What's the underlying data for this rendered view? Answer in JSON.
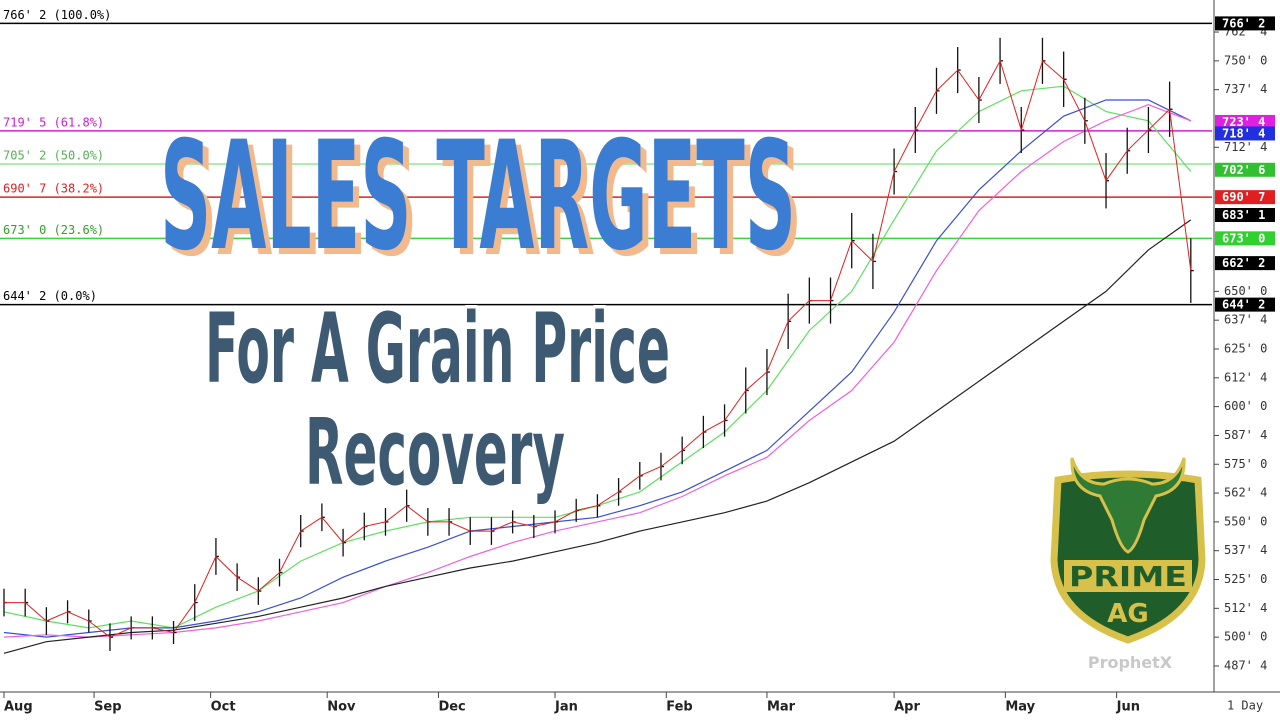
{
  "chart_data": {
    "type": "ohlc",
    "x": [
      0,
      4,
      8,
      12,
      16,
      20,
      24,
      28,
      32,
      36,
      40,
      44,
      48,
      52,
      56,
      60,
      64,
      68,
      72,
      76,
      80,
      84,
      88,
      92,
      96,
      100,
      104,
      108,
      112,
      116,
      120,
      124,
      128,
      132,
      136,
      140,
      144,
      148,
      152,
      156,
      160,
      164,
      168,
      172,
      176,
      180,
      184,
      188,
      192,
      196,
      200,
      204,
      208,
      212,
      216,
      220,
      224
    ],
    "high": [
      521,
      521,
      513,
      516,
      512,
      506,
      509,
      509,
      507,
      523,
      543,
      532,
      526,
      534,
      553,
      558,
      547,
      554,
      556,
      564,
      556,
      556,
      552,
      552,
      555,
      553,
      555,
      560,
      562,
      569,
      576,
      580,
      587,
      596,
      601,
      617,
      625,
      649,
      656,
      656,
      684,
      675,
      712,
      730,
      747,
      756,
      743,
      760,
      730,
      760,
      754,
      734,
      710,
      721,
      730,
      741,
      673
    ],
    "low": [
      509,
      509,
      501,
      506,
      502,
      494,
      499,
      499,
      497,
      507,
      527,
      520,
      514,
      522,
      539,
      546,
      535,
      542,
      544,
      550,
      544,
      544,
      540,
      540,
      545,
      543,
      545,
      550,
      552,
      557,
      564,
      568,
      575,
      582,
      587,
      597,
      605,
      625,
      636,
      636,
      660,
      651,
      692,
      710,
      727,
      736,
      723,
      740,
      710,
      740,
      730,
      714,
      686,
      701,
      710,
      717,
      645
    ],
    "close": [
      515,
      515,
      507,
      511,
      507,
      500,
      504,
      504,
      502,
      515,
      535,
      526,
      520,
      528,
      546,
      552,
      541,
      548,
      550,
      557,
      550,
      550,
      546,
      546,
      550,
      548,
      550,
      555,
      557,
      563,
      570,
      574,
      581,
      589,
      594,
      607,
      615,
      637,
      646,
      646,
      672,
      663,
      702,
      720,
      737,
      746,
      733,
      750,
      720,
      750,
      742,
      724,
      698,
      711,
      720,
      729,
      659
    ],
    "bar_color": "#111111",
    "close_line_color": "#e02020",
    "moving_averages": [
      {
        "color": "#5ee05e",
        "x": [
          0,
          8,
          16,
          24,
          32,
          40,
          48,
          56,
          64,
          72,
          80,
          88,
          96,
          104,
          112,
          120,
          128,
          136,
          144,
          152,
          160,
          168,
          176,
          184,
          192,
          200,
          208,
          216,
          224
        ],
        "values": [
          511,
          507,
          504,
          507,
          504,
          513,
          520,
          533,
          541,
          546,
          550,
          552,
          552,
          552,
          557,
          563,
          576,
          589,
          607,
          633,
          650,
          681,
          711,
          728,
          737,
          739,
          728,
          724,
          702
        ]
      },
      {
        "color": "#3a4fd0",
        "x": [
          0,
          8,
          16,
          24,
          32,
          40,
          48,
          56,
          64,
          72,
          80,
          88,
          96,
          104,
          112,
          120,
          128,
          136,
          144,
          152,
          160,
          168,
          176,
          184,
          192,
          200,
          208,
          216,
          224
        ],
        "values": [
          502,
          500,
          502,
          504,
          504,
          507,
          511,
          517,
          526,
          533,
          539,
          546,
          548,
          550,
          552,
          557,
          563,
          572,
          581,
          598,
          615,
          641,
          672,
          694,
          711,
          726,
          733,
          733,
          724
        ]
      },
      {
        "color": "#f060e0",
        "x": [
          0,
          8,
          16,
          24,
          32,
          40,
          48,
          56,
          64,
          72,
          80,
          88,
          96,
          104,
          112,
          120,
          128,
          136,
          144,
          152,
          160,
          168,
          176,
          184,
          192,
          200,
          208,
          216,
          224
        ],
        "values": [
          500,
          501,
          500,
          501,
          502,
          504,
          507,
          511,
          515,
          522,
          528,
          535,
          541,
          546,
          550,
          554,
          561,
          570,
          578,
          594,
          607,
          628,
          659,
          685,
          702,
          715,
          724,
          731,
          724
        ]
      },
      {
        "color": "#222222",
        "x": [
          0,
          8,
          16,
          24,
          32,
          40,
          48,
          56,
          64,
          72,
          80,
          88,
          96,
          104,
          112,
          120,
          128,
          136,
          144,
          152,
          160,
          168,
          176,
          184,
          192,
          200,
          208,
          216,
          224
        ],
        "values": [
          493,
          498,
          500,
          502,
          503,
          506,
          509,
          513,
          517,
          522,
          526,
          530,
          533,
          537,
          541,
          546,
          550,
          554,
          559,
          567,
          576,
          585,
          598,
          611,
          624,
          637,
          650,
          668,
          681
        ]
      }
    ],
    "xlim": [
      0,
      228
    ],
    "xticks": [
      {
        "value": 0,
        "label": "Aug"
      },
      {
        "value": 17,
        "label": "Sep"
      },
      {
        "value": 39,
        "label": "Oct"
      },
      {
        "value": 61,
        "label": "Nov"
      },
      {
        "value": 82,
        "label": "Dec"
      },
      {
        "value": 104,
        "label": "Jan"
      },
      {
        "value": 125,
        "label": "Feb"
      },
      {
        "value": 144,
        "label": "Mar"
      },
      {
        "value": 168,
        "label": "Apr"
      },
      {
        "value": 189,
        "label": "May"
      },
      {
        "value": 210,
        "label": "Jun"
      }
    ],
    "ylim": [
      476.2,
      776.4
    ],
    "yticks": [
      {
        "value": 762.5,
        "label": "762' 4"
      },
      {
        "value": 750,
        "label": "750' 0"
      },
      {
        "value": 737.5,
        "label": "737' 4"
      },
      {
        "value": 712.5,
        "label": "712' 4"
      },
      {
        "value": 650,
        "label": "650' 0"
      },
      {
        "value": 637.5,
        "label": "637' 4"
      },
      {
        "value": 625,
        "label": "625' 0"
      },
      {
        "value": 612.5,
        "label": "612' 4"
      },
      {
        "value": 600,
        "label": "600' 0"
      },
      {
        "value": 587.5,
        "label": "587' 4"
      },
      {
        "value": 575,
        "label": "575' 0"
      },
      {
        "value": 562.5,
        "label": "562' 4"
      },
      {
        "value": 550,
        "label": "550' 0"
      },
      {
        "value": 537.5,
        "label": "537' 4"
      },
      {
        "value": 525,
        "label": "525' 0"
      },
      {
        "value": 512.5,
        "label": "512' 4"
      },
      {
        "value": 500,
        "label": "500' 0"
      },
      {
        "value": 487.5,
        "label": "487' 4"
      }
    ],
    "levels": [
      {
        "value": 766.25,
        "label": "766' 2 (100.0%)",
        "color": "#000000"
      },
      {
        "value": 719.625,
        "label": "719' 5 (61.8%)",
        "color": "#d020d0"
      },
      {
        "value": 705.25,
        "label": "705' 2 (50.0%)",
        "color": "#90e890"
      },
      {
        "value": 690.875,
        "label": "690' 7 (38.2%)",
        "color": "#e02020"
      },
      {
        "value": 673.0,
        "label": "673' 0 (23.6%)",
        "color": "#40d040"
      },
      {
        "value": 644.25,
        "label": "644' 2 (0.0%)",
        "color": "#000000"
      }
    ],
    "price_tags": [
      {
        "value": 766.25,
        "label": "766' 2",
        "color": "#000000"
      },
      {
        "value": 723.5,
        "label": "723' 4",
        "color": "#e020e0"
      },
      {
        "value": 718.5,
        "label": "718' 4",
        "color": "#2030e0"
      },
      {
        "value": 702.75,
        "label": "702' 6",
        "color": "#30c030"
      },
      {
        "value": 690.875,
        "label": "690' 7",
        "color": "#e02020"
      },
      {
        "value": 683.125,
        "label": "683' 1",
        "color": "#000000"
      },
      {
        "value": 673.0,
        "label": "673' 0",
        "color": "#30d030"
      },
      {
        "value": 662.25,
        "label": "662' 2",
        "color": "#000000"
      },
      {
        "value": 644.25,
        "label": "644' 2",
        "color": "#000000"
      }
    ],
    "interval": "1 Day"
  },
  "overlay": {
    "title": "SALES TARGETS",
    "subtitle_lines": [
      "For A Grain Price",
      "Recovery"
    ]
  },
  "logo": {
    "lines": [
      "PRIME",
      "AG"
    ],
    "provider": "ProphetX"
  }
}
